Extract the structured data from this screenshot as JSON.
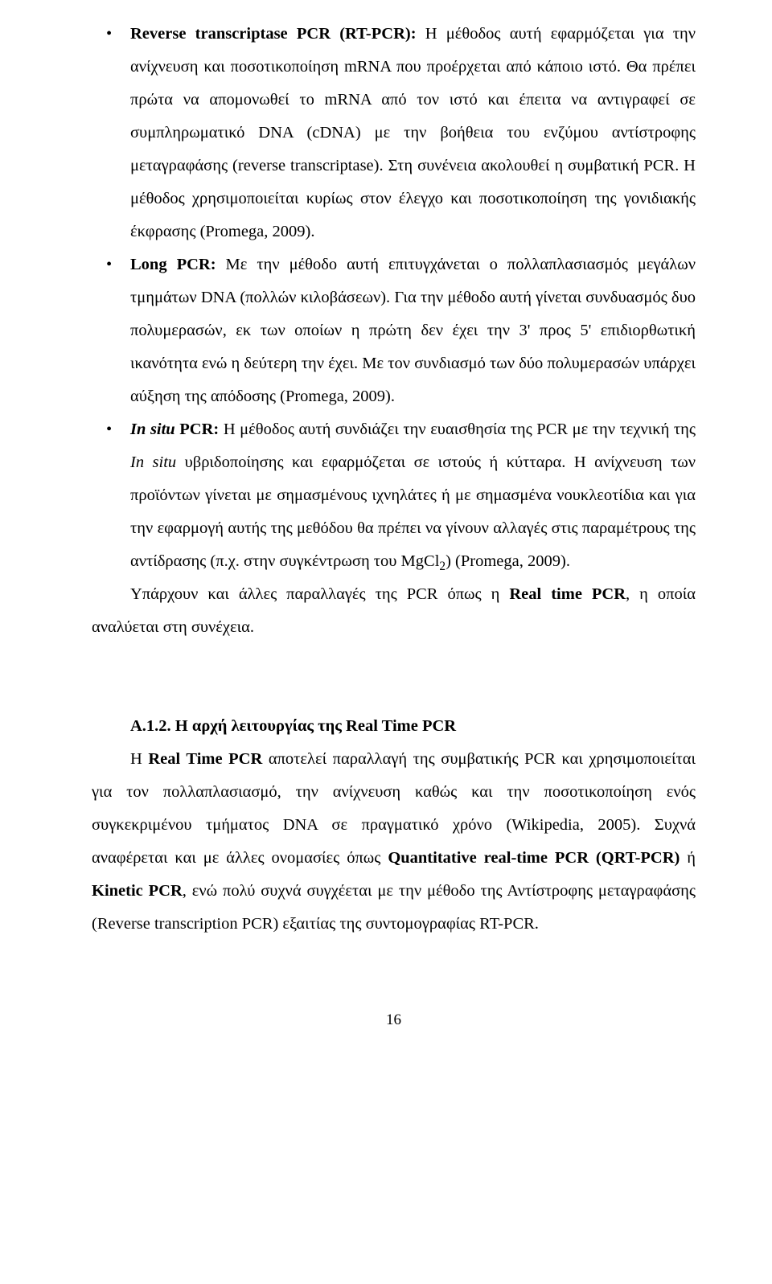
{
  "bullets": {
    "b1": {
      "lead": "Reverse transcriptase PCR (RT-PCR):",
      "text": " Η μέθοδος αυτή εφαρμόζεται για την ανίχνευση και ποσοτικοποίηση mRNA που προέρχεται από κάποιο ιστό. Θα πρέπει πρώτα να απομονωθεί το mRNA από τον ιστό και έπειτα να αντιγραφεί σε συμπληρωματικό DNA (cDNA) με την βοήθεια του ενζύμου αντίστροφης μεταγραφάσης (reverse transcriptase). Στη συνένεια ακολουθεί η συμβατική PCR. Η μέθοδος χρησιμοποιείται κυρίως στον έλεγχο και ποσοτικοποίηση της γονιδιακής έκφρασης (Promega, 2009)."
    },
    "b2": {
      "lead": "Long PCR:",
      "text": " Με την μέθοδο αυτή επιτυγχάνεται ο πολλαπλασιασμός μεγάλων τμημάτων DNA (πολλών κιλοβάσεων). Για την μέθοδο αυτή γίνεται συνδυασμός δυο πολυμερασών, εκ των οποίων η πρώτη δεν έχει την 3' προς 5' επιδιορθωτική ικανότητα ενώ η δεύτερη την έχει. Με τον συνδιασμό των δύο πολυμερασών υπάρχει αύξηση της απόδοσης (Promega, 2009)."
    },
    "b3": {
      "lead_italic": "In situ",
      "lead_rest": " PCR:",
      "text_a": " Η μέθοδος αυτή συνδιάζει την ευαισθησία της PCR με την τεχνική της ",
      "insitu": "In situ",
      "text_b": " υβριδοποίησης και εφαρμόζεται σε ιστούς ή κύτταρα. Η ανίχνευση των προϊόντων γίνεται με σημασμένους ιχνηλάτες ή με σημασμένα νουκλεοτίδια και για την εφαρμογή αυτής της μεθόδου θα πρέπει να γίνουν αλλαγές στις παραμέτρους της αντίδρασης (π.χ. στην συγκέντρωση του MgCl",
      "sub": "2",
      "text_c": ") (Promega, 2009)."
    }
  },
  "para1": {
    "a": "Υπάρχουν και άλλες παραλλαγές της PCR όπως η ",
    "b": "Real time PCR",
    "c": ", η οποία αναλύεται στη συνέχεια."
  },
  "heading": "Α.1.2.  Η αρχή λειτουργίας της Real Time PCR",
  "para2": {
    "a": "Η ",
    "b": "Real Time PCR",
    "c": " αποτελεί παραλλαγή της συμβατικής PCR και χρησιμοποιείται για τον πολλαπλασιασμό, την ανίχνευση καθώς και την ποσοτικοποίηση ενός συγκεκριμένου τμήματος DNA σε πραγματικό χρόνο (Wikipedia, 2005). Συχνά αναφέρεται και με άλλες ονομασίες όπως ",
    "d": "Quantitative real-time PCR (QRT-PCR)",
    "e": " ή ",
    "f": "Kinetic PCR",
    "g": ", ενώ πολύ συχνά συγχέεται με την μέθοδο της Αντίστροφης μεταγραφάσης (Reverse transcription PCR) εξαιτίας της συντομογραφίας RT-PCR."
  },
  "pageNumber": "16"
}
